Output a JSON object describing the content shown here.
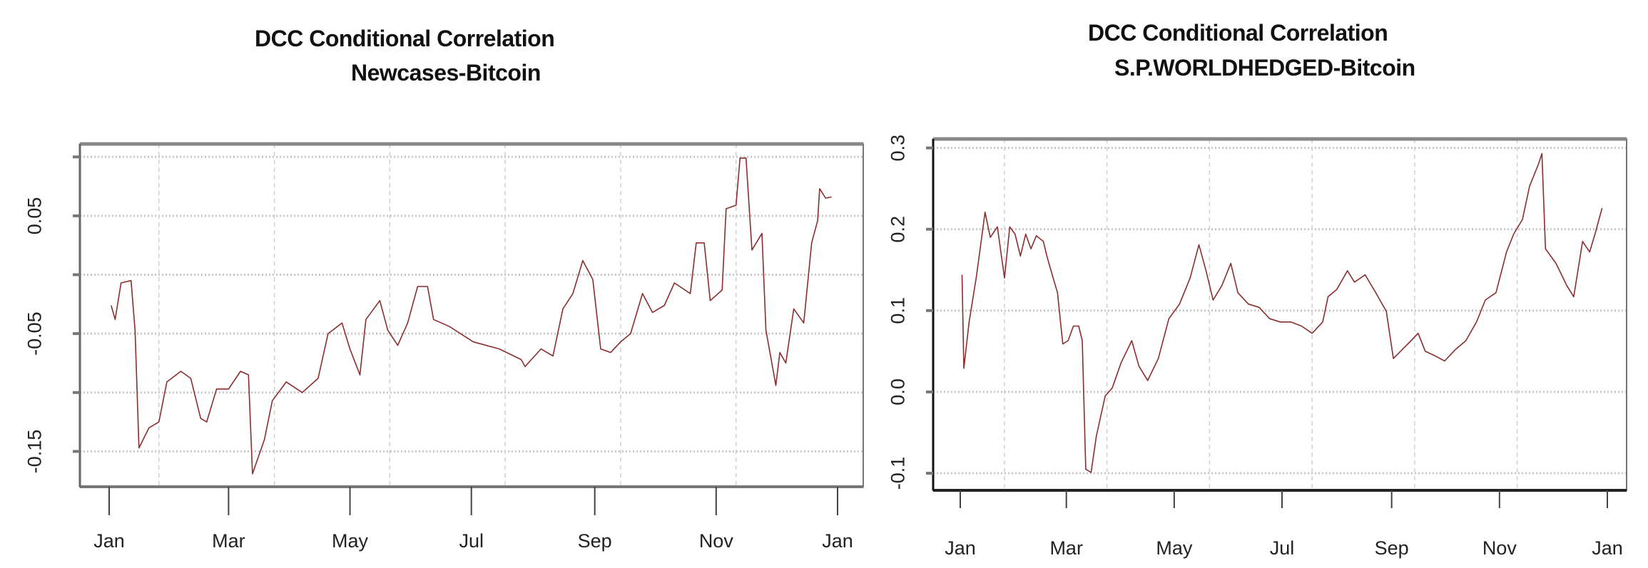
{
  "chart_data": [
    {
      "type": "line",
      "title": "DCC Conditional Correlation",
      "subtitle": "Newcases-Bitcoin",
      "xlabel": "",
      "ylabel": "",
      "x_ticks": [
        "Jan",
        "Mar",
        "May",
        "Jul",
        "Sep",
        "Nov",
        "Jan"
      ],
      "y_ticks": [
        0.1,
        0.05,
        0.0,
        -0.05,
        -0.1,
        -0.15
      ],
      "y_tick_labels": [
        "",
        "0.05",
        "",
        "-0.05",
        "",
        "-0.15"
      ],
      "ylim": [
        -0.18,
        0.111
      ],
      "grid": true,
      "line_color": "#8b2e2e",
      "series": [
        {
          "x": [
            "01-02",
            "01-04",
            "01-07",
            "01-12",
            "01-14",
            "01-16",
            "01-21",
            "01-26",
            "01-30",
            "02-06",
            "02-11",
            "02-16",
            "02-19",
            "02-24",
            "03-01",
            "03-07",
            "03-11",
            "03-13",
            "03-19",
            "03-23",
            "03-30",
            "04-07",
            "04-15",
            "04-20",
            "04-27",
            "05-01",
            "05-06",
            "05-09",
            "05-16",
            "05-20",
            "05-25",
            "05-30",
            "06-04",
            "06-09",
            "06-12",
            "06-20",
            "07-02",
            "07-15",
            "07-26",
            "07-28",
            "08-05",
            "08-11",
            "08-16",
            "08-21",
            "08-26",
            "08-31",
            "09-04",
            "09-09",
            "09-14",
            "09-19",
            "09-25",
            "09-30",
            "10-06",
            "10-11",
            "10-19",
            "10-22",
            "10-26",
            "10-29",
            "11-04",
            "11-06",
            "11-11",
            "11-13",
            "11-16",
            "11-19",
            "11-24",
            "11-26",
            "12-01",
            "12-03",
            "12-06",
            "12-10",
            "12-15",
            "12-19",
            "12-22",
            "12-23",
            "12-26",
            "12-29"
          ],
          "y": [
            -0.026,
            -0.038,
            -0.007,
            -0.005,
            -0.047,
            -0.147,
            -0.13,
            -0.125,
            -0.091,
            -0.082,
            -0.088,
            -0.122,
            -0.125,
            -0.097,
            -0.097,
            -0.082,
            -0.085,
            -0.169,
            -0.14,
            -0.107,
            -0.091,
            -0.1,
            -0.088,
            -0.05,
            -0.041,
            -0.063,
            -0.085,
            -0.038,
            -0.022,
            -0.047,
            -0.06,
            -0.041,
            -0.01,
            -0.01,
            -0.038,
            -0.044,
            -0.057,
            -0.063,
            -0.072,
            -0.078,
            -0.063,
            -0.069,
            -0.029,
            -0.016,
            0.012,
            -0.004,
            -0.063,
            -0.066,
            -0.057,
            -0.05,
            -0.016,
            -0.032,
            -0.026,
            -0.007,
            -0.016,
            0.027,
            0.027,
            -0.022,
            -0.013,
            0.056,
            0.059,
            0.099,
            0.099,
            0.021,
            0.035,
            -0.047,
            -0.094,
            -0.066,
            -0.075,
            -0.029,
            -0.041,
            0.027,
            0.046,
            0.073,
            0.065,
            0.066
          ]
        }
      ]
    },
    {
      "type": "line",
      "title": "DCC Conditional Correlation",
      "subtitle": "S.P.WORLDHEDGED-Bitcoin",
      "xlabel": "",
      "ylabel": "",
      "x_ticks": [
        "Jan",
        "Mar",
        "May",
        "Jul",
        "Sep",
        "Nov",
        "Jan"
      ],
      "y_ticks": [
        0.3,
        0.2,
        0.1,
        0.0,
        -0.1
      ],
      "y_tick_labels": [
        "0.3",
        "0.2",
        "0.1",
        "0.0",
        "-0.1"
      ],
      "ylim": [
        -0.121,
        0.311
      ],
      "grid": true,
      "line_color": "#8b2e2e",
      "series": [
        {
          "x": [
            "01-02",
            "01-03",
            "01-06",
            "01-10",
            "01-12",
            "01-15",
            "01-18",
            "01-22",
            "01-26",
            "01-29",
            "02-01",
            "02-04",
            "02-07",
            "02-10",
            "02-13",
            "02-17",
            "02-19",
            "02-22",
            "02-25",
            "02-28",
            "03-02",
            "03-05",
            "03-08",
            "03-10",
            "03-12",
            "03-15",
            "03-18",
            "03-23",
            "03-27",
            "04-01",
            "04-07",
            "04-11",
            "04-16",
            "04-22",
            "04-28",
            "05-04",
            "05-10",
            "05-15",
            "05-19",
            "05-23",
            "05-28",
            "06-02",
            "06-06",
            "06-12",
            "06-18",
            "06-24",
            "06-30",
            "07-06",
            "07-12",
            "07-18",
            "07-24",
            "07-27",
            "08-01",
            "08-07",
            "08-11",
            "08-17",
            "08-23",
            "08-29",
            "09-02",
            "09-06",
            "09-12",
            "09-16",
            "09-20",
            "09-25",
            "10-01",
            "10-07",
            "10-13",
            "10-19",
            "10-24",
            "10-30",
            "11-05",
            "11-09",
            "11-14",
            "11-18",
            "11-23",
            "11-25",
            "11-27",
            "12-03",
            "12-09",
            "12-13",
            "12-18",
            "12-22",
            "12-25",
            "12-29"
          ],
          "y": [
            0.144,
            0.029,
            0.086,
            0.14,
            0.172,
            0.221,
            0.19,
            0.203,
            0.14,
            0.203,
            0.194,
            0.167,
            0.194,
            0.176,
            0.192,
            0.185,
            0.167,
            0.144,
            0.122,
            0.059,
            0.063,
            0.081,
            0.081,
            0.063,
            -0.095,
            -0.099,
            -0.054,
            -0.005,
            0.005,
            0.036,
            0.063,
            0.032,
            0.014,
            0.041,
            0.09,
            0.108,
            0.14,
            0.181,
            0.149,
            0.113,
            0.131,
            0.158,
            0.122,
            0.108,
            0.104,
            0.09,
            0.086,
            0.086,
            0.081,
            0.072,
            0.086,
            0.117,
            0.126,
            0.149,
            0.135,
            0.144,
            0.122,
            0.099,
            0.041,
            0.05,
            0.063,
            0.072,
            0.05,
            0.045,
            0.038,
            0.052,
            0.063,
            0.086,
            0.113,
            0.122,
            0.172,
            0.194,
            0.212,
            0.253,
            0.28,
            0.293,
            0.176,
            0.158,
            0.131,
            0.117,
            0.185,
            0.172,
            0.194,
            0.226
          ]
        }
      ]
    }
  ]
}
